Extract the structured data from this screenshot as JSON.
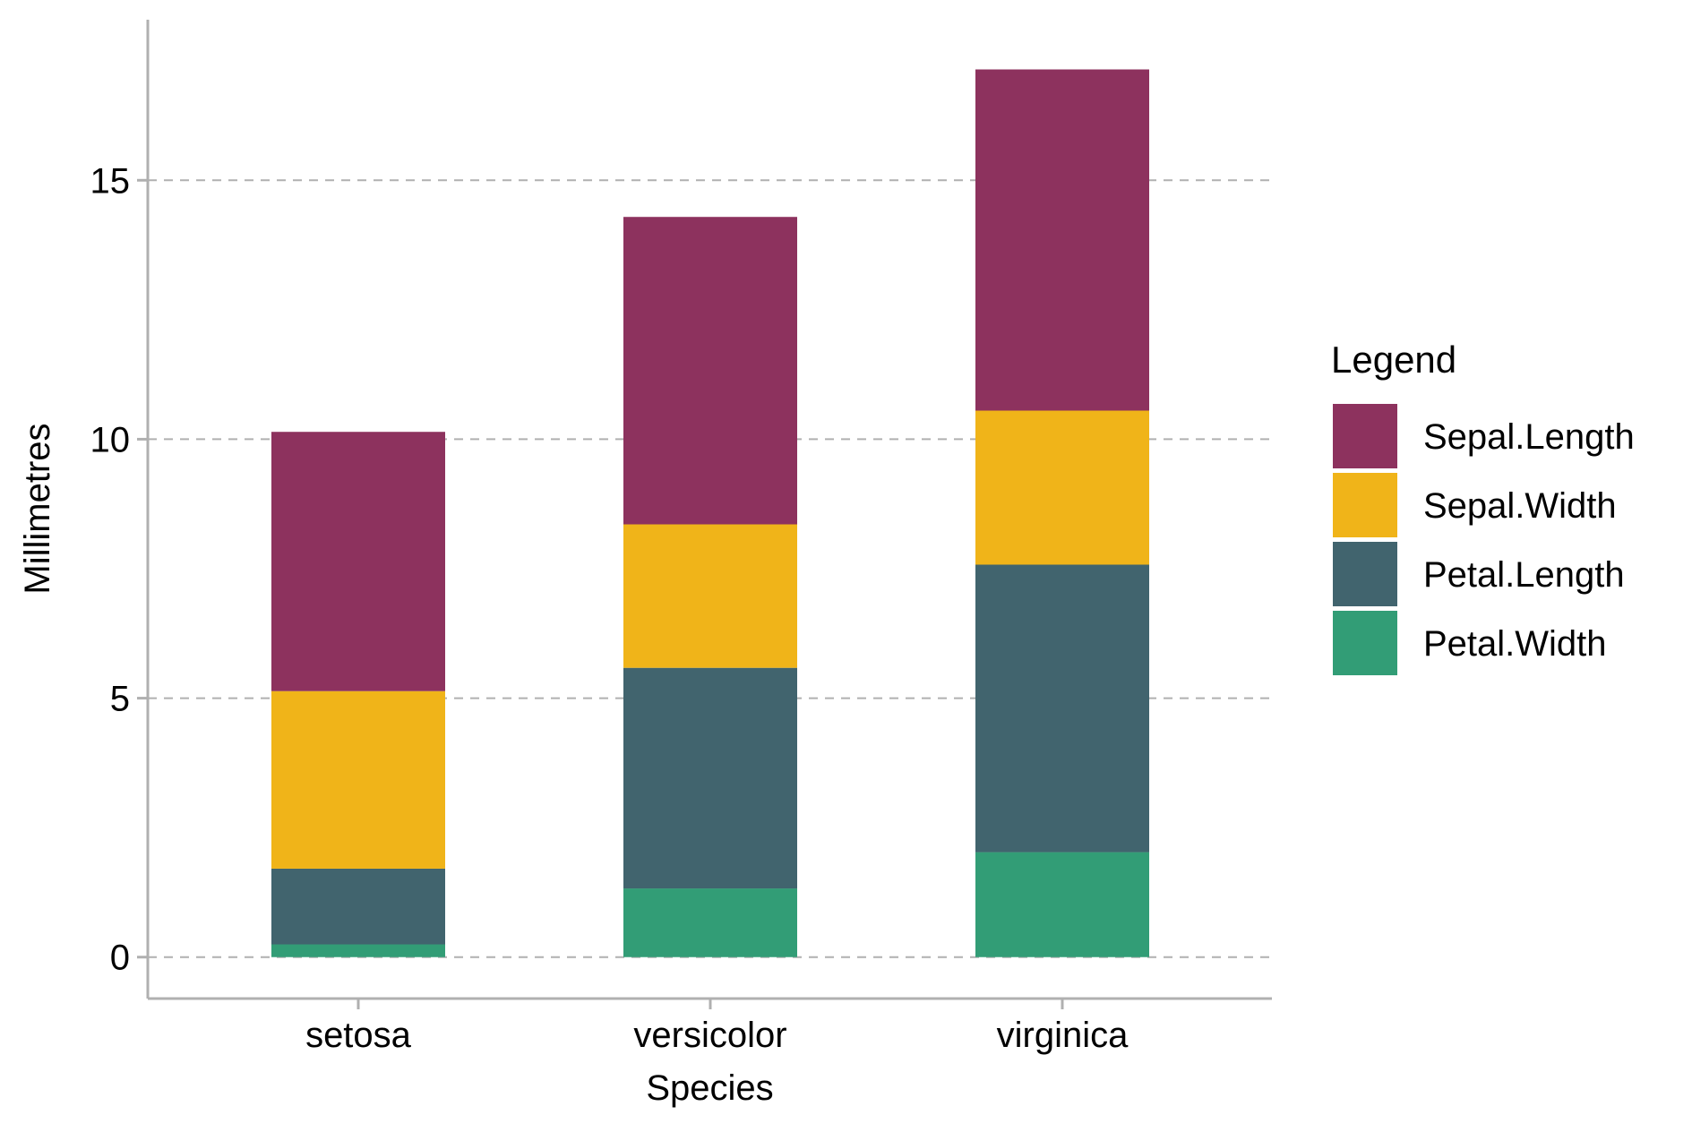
{
  "chart_data": {
    "type": "bar",
    "stacked": true,
    "title": "",
    "xlabel": "Species",
    "ylabel": "Millimetres",
    "categories": [
      "setosa",
      "versicolor",
      "virginica"
    ],
    "series": [
      {
        "name": "Petal.Width",
        "color": "#329D76",
        "values": [
          0.246,
          1.326,
          2.026
        ]
      },
      {
        "name": "Petal.Length",
        "color": "#41646E",
        "values": [
          1.462,
          4.26,
          5.552
        ]
      },
      {
        "name": "Sepal.Width",
        "color": "#F0B419",
        "values": [
          3.428,
          2.77,
          2.974
        ]
      },
      {
        "name": "Sepal.Length",
        "color": "#8D325E",
        "values": [
          5.006,
          5.936,
          6.588
        ]
      }
    ],
    "ylim": [
      -0.8,
      18.1
    ],
    "yticks": [
      0,
      5,
      10,
      15
    ],
    "grid": "horizontal-dashed",
    "legend": {
      "title": "Legend",
      "position": "right",
      "order": [
        "Sepal.Length",
        "Sepal.Width",
        "Petal.Length",
        "Petal.Width"
      ]
    },
    "colors": {
      "axis": "#B0B0B0",
      "grid": "#B0B0B0"
    }
  }
}
